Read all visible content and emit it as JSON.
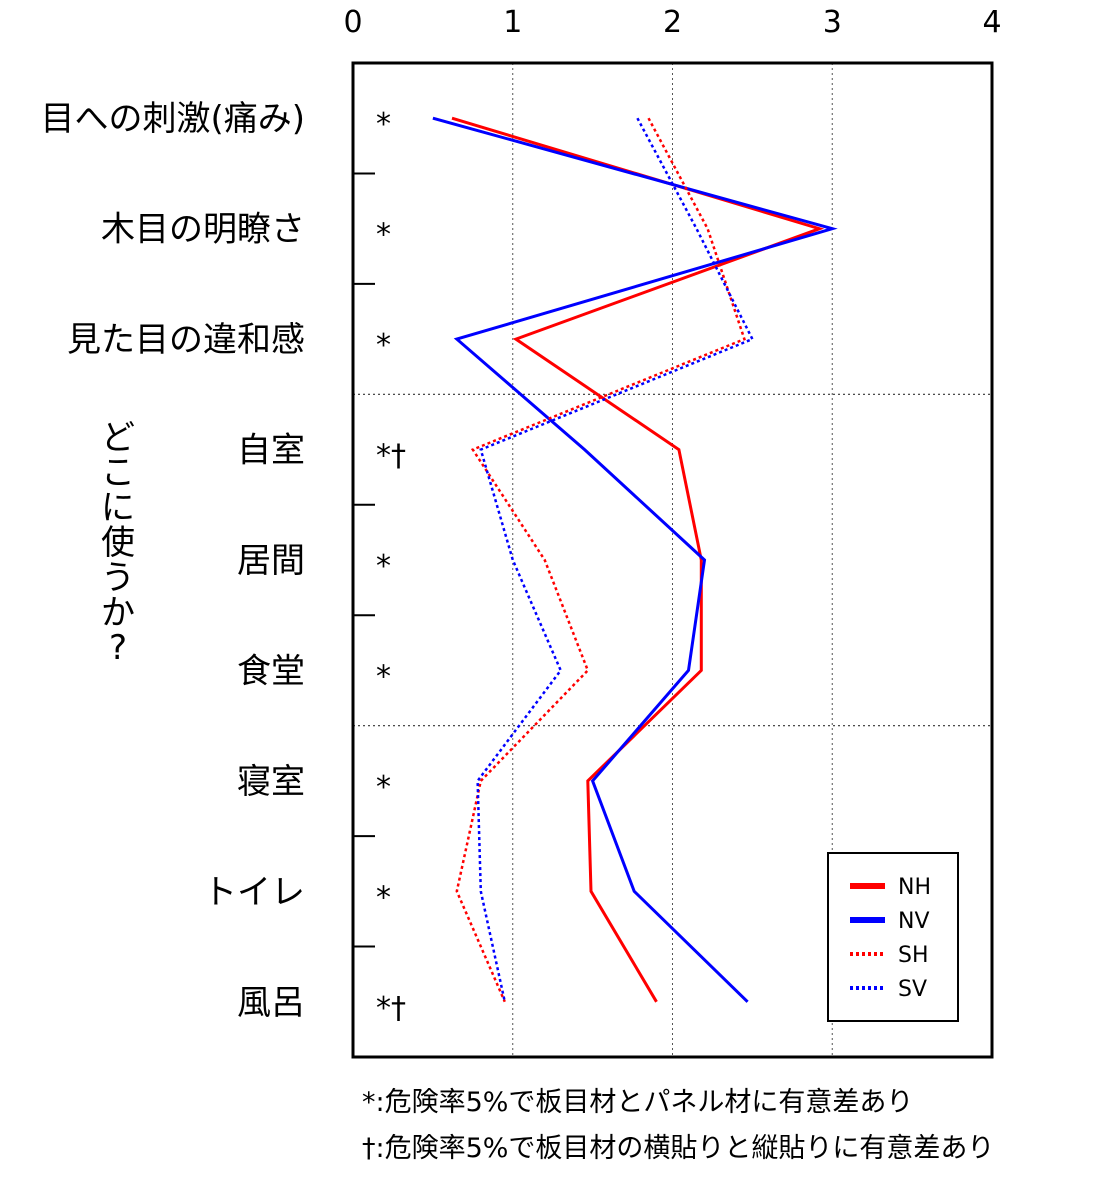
{
  "chart_data": {
    "type": "line",
    "orientation": "horizontal",
    "x_ticks": [
      "0",
      "1",
      "2",
      "3",
      "4"
    ],
    "xlim": [
      0,
      4
    ],
    "categories": [
      "目への刺激(痛み)",
      "木目の明瞭さ",
      "見た目の違和感",
      "自室",
      "居間",
      "食堂",
      "寝室",
      "トイレ",
      "風呂"
    ],
    "group_label": "どこに使うか?",
    "significance_marks": [
      "*",
      "*",
      "*",
      "*†",
      "*",
      "*",
      "*",
      "*",
      "*†"
    ],
    "series": [
      {
        "name": "NH",
        "color": "#ff0000",
        "style": "solid",
        "values": [
          0.62,
          2.92,
          1.02,
          2.04,
          2.18,
          2.18,
          1.47,
          1.49,
          1.9
        ]
      },
      {
        "name": "NV",
        "color": "#0000ff",
        "style": "solid",
        "values": [
          0.5,
          3.0,
          0.65,
          1.45,
          2.2,
          2.1,
          1.5,
          1.76,
          2.47
        ]
      },
      {
        "name": "SH",
        "color": "#ff0000",
        "style": "dotted",
        "values": [
          1.85,
          2.22,
          2.45,
          0.75,
          1.2,
          1.47,
          0.8,
          0.65,
          0.95
        ]
      },
      {
        "name": "SV",
        "color": "#0000ff",
        "style": "dotted",
        "values": [
          1.78,
          2.15,
          2.5,
          0.8,
          1.0,
          1.3,
          0.78,
          0.8,
          0.95
        ]
      }
    ],
    "grid": "dotted",
    "legend_position": "bottom-right"
  },
  "notes": [
    "*:危険率5%で板目材とパネル材に有意差あり",
    "†:危険率5%で板目材の横貼りと縦貼りに有意差あり"
  ]
}
